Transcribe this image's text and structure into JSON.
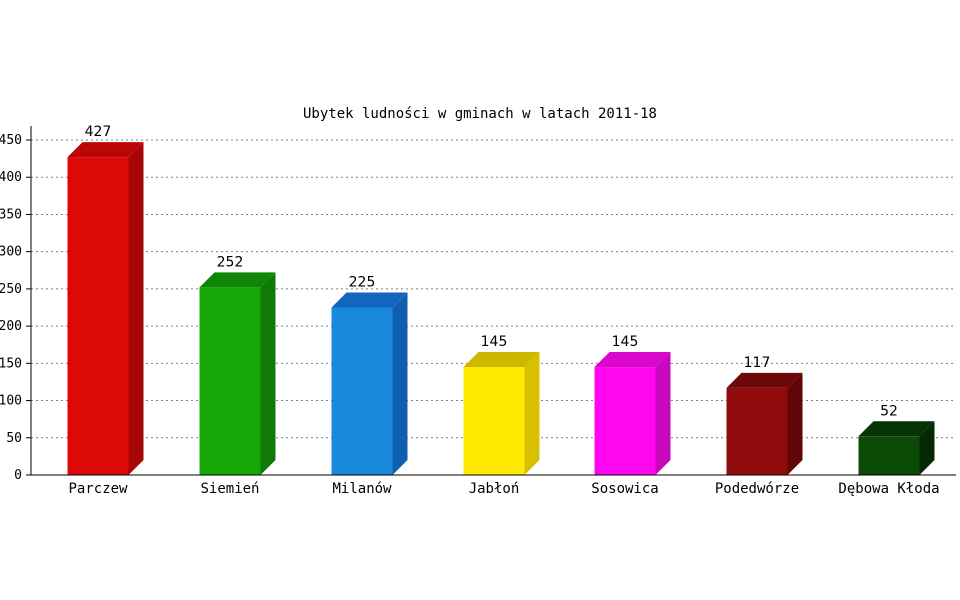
{
  "chart_data": {
    "type": "bar",
    "title": "Ubytek ludności w gminach w latach 2011-18",
    "xlabel": "",
    "ylabel": "",
    "ylim": [
      0,
      450
    ],
    "yticks": [
      0,
      50,
      100,
      150,
      200,
      250,
      300,
      350,
      400,
      450
    ],
    "ytick_labels": [
      "0",
      "50",
      "100",
      "150",
      "200",
      "250",
      "300",
      "350",
      "400",
      "450"
    ],
    "grid": true,
    "categories": [
      "Parczew",
      "Siemień",
      "Milanów",
      "Jabłoń",
      "Sosowica",
      "Podedwórze",
      "Dębowa Kłoda"
    ],
    "values": [
      427,
      252,
      225,
      145,
      145,
      117,
      52
    ],
    "colors": [
      {
        "front": "#dd0808",
        "side": "#a80606",
        "top": "#b80707"
      },
      {
        "front": "#16a808",
        "side": "#0f7a06",
        "top": "#108606"
      },
      {
        "front": "#1a88dc",
        "side": "#0f5fb0",
        "top": "#1366c0"
      },
      {
        "front": "#ffe800",
        "side": "#d8c000",
        "top": "#ccb800"
      },
      {
        "front": "#ff08f0",
        "side": "#c806bc",
        "top": "#d807cc"
      },
      {
        "front": "#900c0c",
        "side": "#600606",
        "top": "#6c0808"
      },
      {
        "front": "#0c4a08",
        "side": "#052804",
        "top": "#073405"
      }
    ]
  }
}
